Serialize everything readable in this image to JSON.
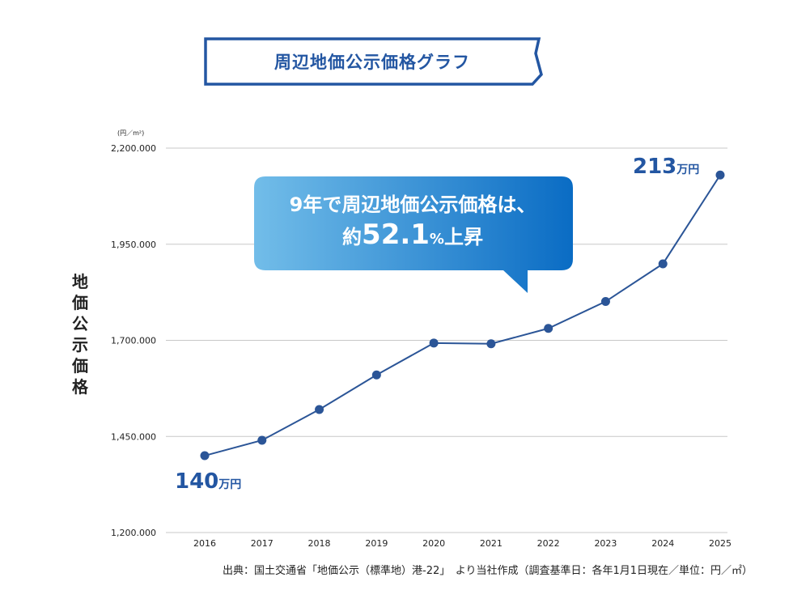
{
  "title": "周辺地価公示価格グラフ",
  "colors": {
    "accent": "#2356a2",
    "line": "#2b5597",
    "grid": "#c8c8c8",
    "callout_start": "#6fbbe8",
    "callout_end": "#0a6cc4"
  },
  "chart_data": {
    "type": "line",
    "x": [
      "2016",
      "2017",
      "2018",
      "2019",
      "2020",
      "2021",
      "2022",
      "2023",
      "2024",
      "2025"
    ],
    "series": [
      {
        "values": [
          1400000,
          1440000,
          1520000,
          1610000,
          1693000,
          1691000,
          1731000,
          1801000,
          1899000,
          2130000
        ]
      }
    ],
    "yticks": [
      "1,200.000",
      "1,450.000",
      "1,700.000",
      "1,950.000",
      "2,200.000"
    ],
    "ytick_values": [
      1200000,
      1450000,
      1700000,
      1950000,
      2200000
    ],
    "ylim": [
      1200000,
      2200000
    ],
    "ylabel": [
      "地",
      "価",
      "公",
      "示",
      "価",
      "格"
    ],
    "yunit": "(円／m²)",
    "grid": true
  },
  "callout": {
    "line1": "9年で周辺地価公示価格は、",
    "prefix": "約",
    "value": "52.1",
    "pct": "%",
    "suffix": "上昇"
  },
  "annotations": {
    "start": {
      "value": "140",
      "unit": "万円"
    },
    "end": {
      "value": "213",
      "unit": "万円"
    }
  },
  "source": "出典：国土交通省「地価公示（標準地）港-22」　より当社作成（調査基準日：各年1月1日現在／単位：円／㎡）"
}
